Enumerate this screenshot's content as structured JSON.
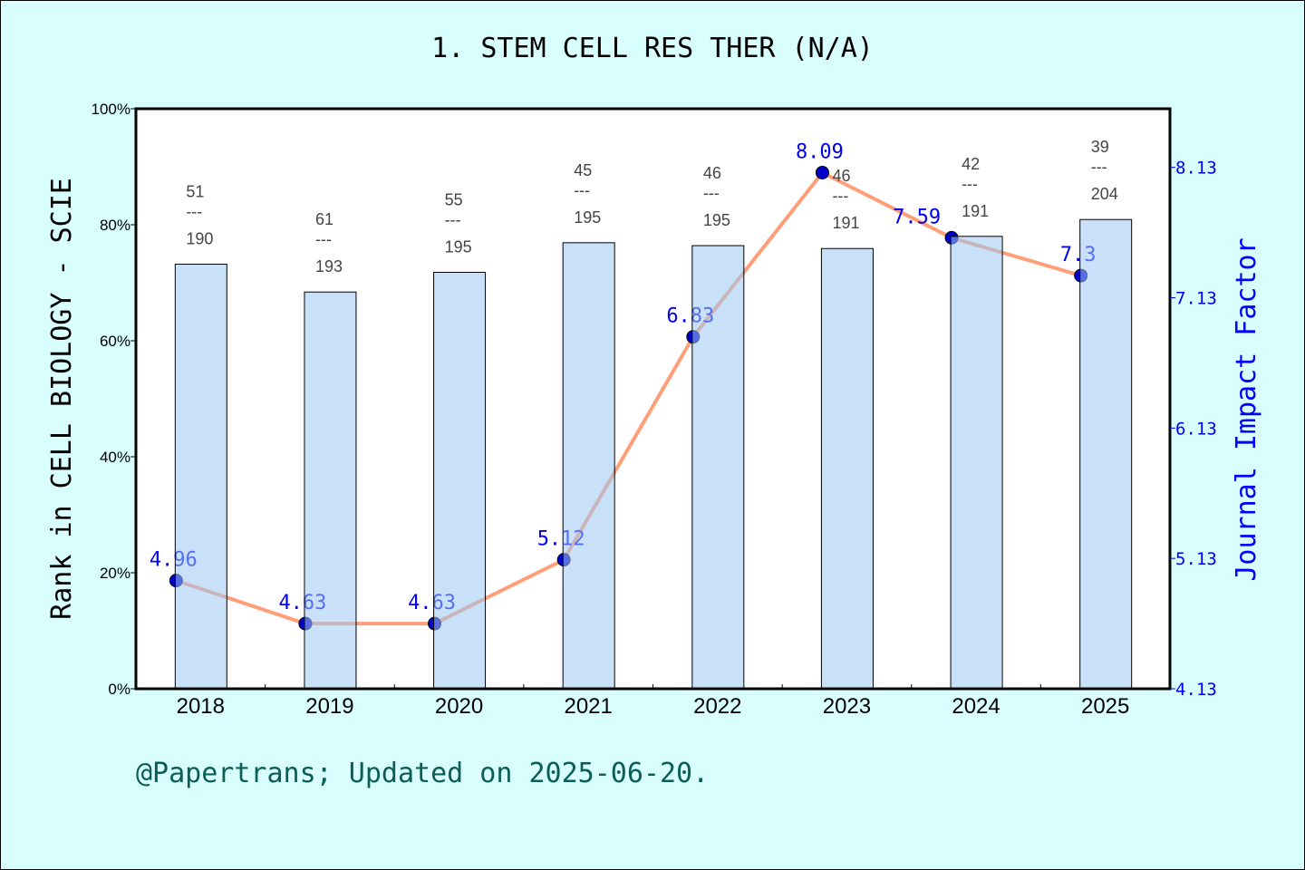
{
  "title": "1. STEM CELL RES THER (N/A)",
  "footer": "@Papertrans; Updated on 2025-06-20.",
  "chart_data": {
    "type": "bar+line",
    "categories": [
      "2018",
      "2019",
      "2020",
      "2021",
      "2022",
      "2023",
      "2024",
      "2025"
    ],
    "ranks": [
      51,
      61,
      55,
      45,
      46,
      46,
      42,
      39
    ],
    "totals": [
      190,
      193,
      195,
      195,
      195,
      191,
      191,
      204
    ],
    "bar_values_percent": [
      73.2,
      68.4,
      71.8,
      76.9,
      76.4,
      75.9,
      78.0,
      80.9
    ],
    "impact_factor": [
      4.96,
      4.63,
      4.63,
      5.12,
      6.83,
      8.09,
      7.59,
      7.3
    ],
    "impact_factor_labels": [
      "4.96",
      "4.63",
      "4.63",
      "5.12",
      "6.83",
      "8.09",
      "7.59",
      "7.3"
    ],
    "ylabel_left": "Rank in CELL BIOLOGY - SCIE",
    "ylabel_right": "Journal Impact Factor",
    "ylim_left": [
      0,
      100
    ],
    "yticks_left": [
      "0%",
      "20%",
      "40%",
      "60%",
      "80%",
      "100%"
    ],
    "ylim_right": [
      4.13,
      8.58
    ],
    "yticks_right": [
      "4.13",
      "5.13",
      "6.13",
      "7.13",
      "8.13"
    ],
    "grid": false,
    "colors": {
      "bar": "#c5dff7",
      "line": "#ff9e78",
      "marker": "#0000cc",
      "if_label": "#0000ee",
      "right_axis": "#0000ff",
      "footer": "#0b5d55",
      "background": "#d8fefe"
    }
  }
}
